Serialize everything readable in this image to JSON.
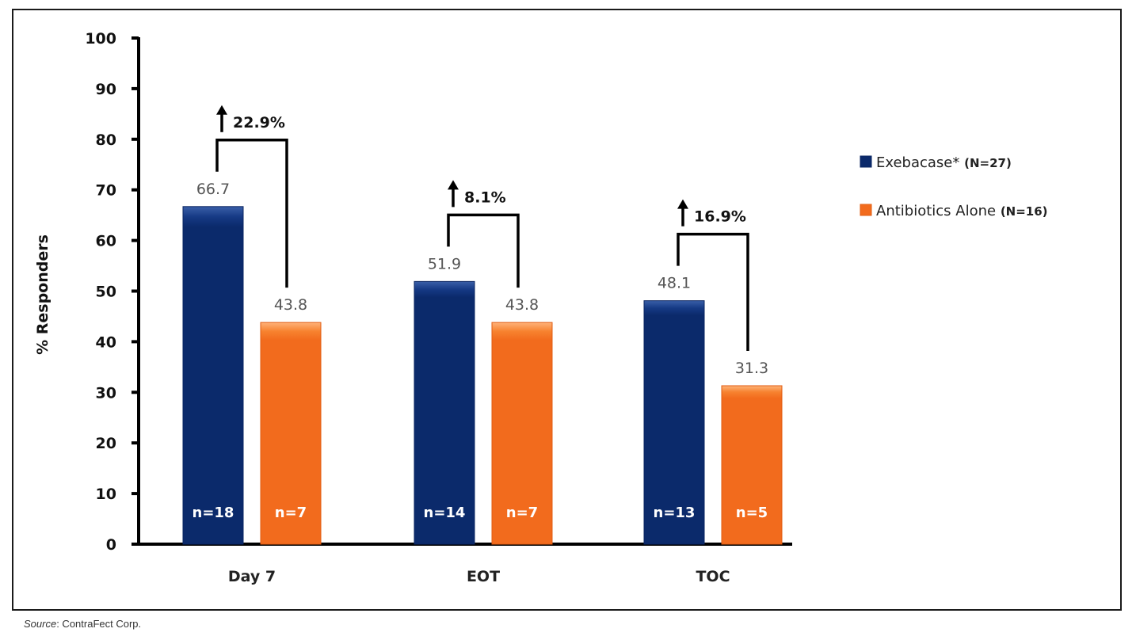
{
  "chart_data": {
    "type": "bar",
    "title": "",
    "xlabel": "",
    "ylabel": "% Responders",
    "ylim": [
      0,
      100
    ],
    "yticks": [
      0,
      10,
      20,
      30,
      40,
      50,
      60,
      70,
      80,
      90,
      100
    ],
    "categories": [
      "Day 7",
      "EOT",
      "TOC"
    ],
    "series": [
      {
        "name": "Exebacase*",
        "legend_n": "(N=27)",
        "color": "#0b2a6b",
        "values": [
          66.7,
          51.9,
          48.1
        ],
        "value_labels": [
          "66.7",
          "51.9",
          "48.1"
        ],
        "n_labels": [
          "n=18",
          "n=14",
          "n=13"
        ]
      },
      {
        "name": "Antibiotics Alone",
        "legend_n": "(N=16)",
        "color": "#f26b1d",
        "values": [
          43.8,
          43.8,
          31.3
        ],
        "value_labels": [
          "43.8",
          "43.8",
          "31.3"
        ],
        "n_labels": [
          "n=7",
          "n=7",
          "n=5"
        ]
      }
    ],
    "differences": [
      "22.9%",
      "8.1%",
      "16.9%"
    ],
    "legend_position": "right",
    "grid": false
  },
  "footer": {
    "source_label": "Source",
    "source_text": ": ContraFect Corp."
  }
}
